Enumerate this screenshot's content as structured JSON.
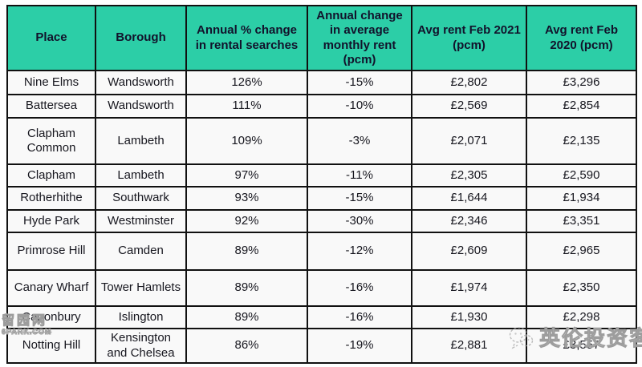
{
  "chart_data": {
    "type": "table",
    "columns": [
      "Place",
      "Borough",
      "Annual % change in rental searches",
      "Annual change in average monthly rent (pcm)",
      "Avg rent Feb 2021 (pcm)",
      "Avg rent Feb 2020 (pcm)"
    ],
    "column_keys": [
      "place",
      "borough",
      "search-change",
      "rent-change",
      "rent-feb-2021",
      "rent-feb-2020"
    ],
    "rows": [
      [
        "Nine Elms",
        "Wandsworth",
        "126%",
        "-15%",
        "£2,802",
        "£3,296"
      ],
      [
        "Battersea",
        "Wandsworth",
        "111%",
        "-10%",
        "£2,569",
        "£2,854"
      ],
      [
        "Clapham Common",
        "Lambeth",
        "109%",
        "-3%",
        "£2,071",
        "£2,135"
      ],
      [
        "Clapham",
        "Lambeth",
        "97%",
        "-11%",
        "£2,305",
        "£2,590"
      ],
      [
        "Rotherhithe",
        "Southwark",
        "93%",
        "-15%",
        "£1,644",
        "£1,934"
      ],
      [
        "Hyde Park",
        "Westminster",
        "92%",
        "-30%",
        "£2,346",
        "£3,351"
      ],
      [
        "Primrose Hill",
        "Camden",
        "89%",
        "-12%",
        "£2,609",
        "£2,965"
      ],
      [
        "Canary Wharf",
        "Tower Hamlets",
        "89%",
        "-16%",
        "£1,974",
        "£2,350"
      ],
      [
        "Canonbury",
        "Islington",
        "89%",
        "-16%",
        "£1,930",
        "£2,298"
      ],
      [
        "Notting Hill",
        "Kensington and Chelsea",
        "86%",
        "-19%",
        "£2,881",
        "£3,557"
      ]
    ]
  },
  "watermarks": {
    "bottom_left": {
      "line1": "留园网",
      "line2": "6PARK.COM"
    },
    "bottom_right": {
      "text": "英伦投资客",
      "icon": "wechat-icon"
    }
  },
  "colors": {
    "header_bg": "#2CCEA7",
    "border": "#111111",
    "header_text": "#12122b",
    "body_text": "#17171f",
    "cell_bg": "#f9f9f9"
  }
}
